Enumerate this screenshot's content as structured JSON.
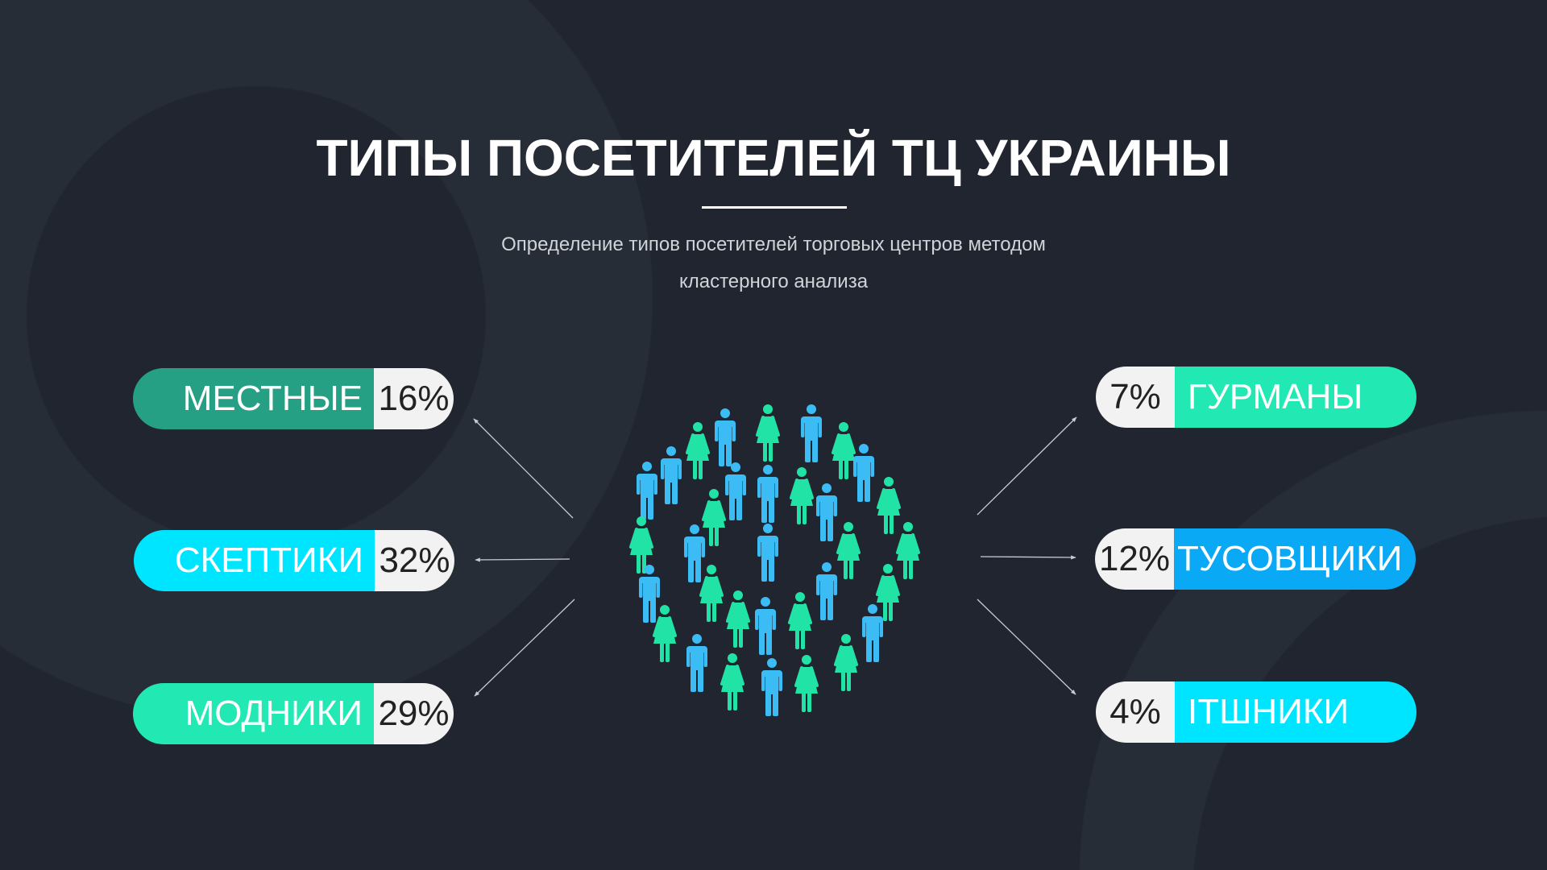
{
  "title": "ТИПЫ ПОСЕТИТЕЛЕЙ ТЦ УКРАИНЫ",
  "subtitle": {
    "line1": "Определение типов посетителей торговых центров методом",
    "line2": "кластерного анализа"
  },
  "left_groups": [
    {
      "label": "МЕСТНЫЕ",
      "percent": "16%",
      "color": "#26a084"
    },
    {
      "label": "СКЕПТИКИ",
      "percent": "32%",
      "color": "#00e5ff"
    },
    {
      "label": "МОДНИКИ",
      "percent": "29%",
      "color": "#22e8b4"
    }
  ],
  "right_groups": [
    {
      "label": "ГУРМАНЫ",
      "percent": "7%",
      "color": "#22e8b4"
    },
    {
      "label": "ТУСОВЩИКИ",
      "percent": "12%",
      "color": "#0aa9f5"
    },
    {
      "label": "ІТШНИКИ",
      "percent": "4%",
      "color": "#00e5ff"
    }
  ],
  "colors": {
    "man": "#3bbcf5",
    "woman": "#22e3a6",
    "background": "#20252f",
    "arrow": "#c8ccd2"
  }
}
